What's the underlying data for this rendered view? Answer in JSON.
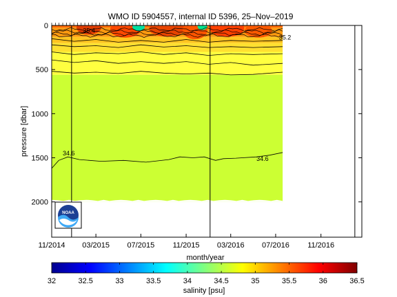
{
  "chart_data": {
    "type": "heatmap",
    "title": "WMO ID 5904557, internal ID 5396, 25–Nov–2019",
    "xlabel": "month/year",
    "ylabel": "pressure [dbar]",
    "x_axis": {
      "type": "date",
      "range": [
        "2014-11-01",
        "2017-02-20"
      ],
      "ticks": [
        {
          "date": "2014-11-01",
          "label": "11/2014"
        },
        {
          "date": "2015-03-01",
          "label": "03/2015"
        },
        {
          "date": "2015-07-01",
          "label": "07/2015"
        },
        {
          "date": "2015-11-01",
          "label": "11/2015"
        },
        {
          "date": "2016-03-01",
          "label": "03/2016"
        },
        {
          "date": "2016-07-01",
          "label": "07/2016"
        },
        {
          "date": "2016-11-01",
          "label": "11/2016"
        }
      ]
    },
    "y_axis": {
      "range": [
        0,
        2400
      ],
      "inverted": true,
      "ticks": [
        0,
        500,
        1000,
        1500,
        2000
      ]
    },
    "vertical_markers": [
      "2014-12-25",
      "2016-01-05",
      "2017-02-01"
    ],
    "data_extent": {
      "start": "2014-11-01",
      "end": "2016-07-20",
      "max_pressure": 2000
    },
    "salinity_bands": [
      {
        "top": 0,
        "bottom": 25,
        "salinity": 35.7,
        "color": "#ff6a00"
      },
      {
        "top": 25,
        "bottom": 130,
        "salinity": 35.3,
        "color": "#ff9a10"
      },
      {
        "top": 130,
        "bottom": 200,
        "salinity": 35.05,
        "color": "#ffc420"
      },
      {
        "top": 200,
        "bottom": 300,
        "salinity": 34.95,
        "color": "#ffe030"
      },
      {
        "top": 300,
        "bottom": 560,
        "salinity": 34.85,
        "color": "#ffff40"
      },
      {
        "top": 560,
        "bottom": 2000,
        "salinity": 34.65,
        "color": "#ccff33"
      }
    ],
    "contours": [
      {
        "level": "34.6",
        "label_date": "2016-05-10",
        "label_pressure": 1510,
        "points": [
          [
            "2014-11-01",
            1620
          ],
          [
            "2014-11-20",
            1530
          ],
          [
            "2014-12-15",
            1490
          ],
          [
            "2015-01-15",
            1520
          ],
          [
            "2015-03-15",
            1540
          ],
          [
            "2015-05-15",
            1530
          ],
          [
            "2015-07-15",
            1550
          ],
          [
            "2015-09-15",
            1520
          ],
          [
            "2015-10-15",
            1490
          ],
          [
            "2015-11-20",
            1500
          ],
          [
            "2015-12-20",
            1490
          ],
          [
            "2016-01-20",
            1530
          ],
          [
            "2016-02-10",
            1510
          ],
          [
            "2016-03-15",
            1505
          ],
          [
            "2016-05-10",
            1490
          ],
          [
            "2016-06-15",
            1470
          ],
          [
            "2016-07-20",
            1440
          ]
        ]
      },
      {
        "level": "",
        "points": [
          [
            "2014-11-01",
            520
          ],
          [
            "2015-01-01",
            540
          ],
          [
            "2015-03-01",
            530
          ],
          [
            "2015-05-01",
            545
          ],
          [
            "2015-07-01",
            520
          ],
          [
            "2015-09-01",
            540
          ],
          [
            "2015-11-01",
            550
          ],
          [
            "2016-01-01",
            540
          ],
          [
            "2016-03-01",
            560
          ],
          [
            "2016-05-01",
            555
          ],
          [
            "2016-07-20",
            530
          ]
        ]
      },
      {
        "level": "",
        "points": [
          [
            "2014-11-01",
            390
          ],
          [
            "2015-01-01",
            420
          ],
          [
            "2015-03-01",
            400
          ],
          [
            "2015-05-01",
            430
          ],
          [
            "2015-07-01",
            410
          ],
          [
            "2015-09-01",
            430
          ],
          [
            "2015-11-01",
            410
          ],
          [
            "2016-01-01",
            440
          ],
          [
            "2016-03-01",
            420
          ],
          [
            "2016-05-01",
            450
          ],
          [
            "2016-07-20",
            430
          ]
        ]
      },
      {
        "level": "",
        "points": [
          [
            "2014-11-01",
            300
          ],
          [
            "2015-01-01",
            330
          ],
          [
            "2015-03-01",
            310
          ],
          [
            "2015-05-01",
            320
          ],
          [
            "2015-07-01",
            300
          ],
          [
            "2015-09-01",
            330
          ],
          [
            "2015-11-01",
            310
          ],
          [
            "2016-01-01",
            340
          ],
          [
            "2016-03-01",
            320
          ],
          [
            "2016-05-01",
            330
          ],
          [
            "2016-07-20",
            320
          ]
        ]
      },
      {
        "level": "",
        "points": [
          [
            "2014-11-01",
            220
          ],
          [
            "2015-01-01",
            240
          ],
          [
            "2015-03-01",
            230
          ],
          [
            "2015-05-01",
            250
          ],
          [
            "2015-07-01",
            220
          ],
          [
            "2015-09-01",
            245
          ],
          [
            "2015-11-01",
            230
          ],
          [
            "2016-01-01",
            250
          ],
          [
            "2016-03-01",
            240
          ],
          [
            "2016-05-01",
            250
          ],
          [
            "2016-07-20",
            240
          ]
        ]
      },
      {
        "level": "",
        "points": [
          [
            "2014-11-01",
            150
          ],
          [
            "2015-01-01",
            180
          ],
          [
            "2015-03-01",
            160
          ],
          [
            "2015-05-01",
            190
          ],
          [
            "2015-07-01",
            170
          ],
          [
            "2015-09-01",
            190
          ],
          [
            "2015-11-01",
            160
          ],
          [
            "2016-01-01",
            190
          ],
          [
            "2016-03-01",
            170
          ],
          [
            "2016-05-01",
            180
          ],
          [
            "2016-07-20",
            170
          ]
        ]
      }
    ],
    "contour_labels": [
      {
        "text": "34.6",
        "date": "2014-12-01",
        "pressure": 1450
      },
      {
        "text": "35.2",
        "date": "2016-07-10",
        "pressure": 135
      },
      {
        "text": "35.4",
        "date": "2015-01-25",
        "pressure": 60
      },
      {
        "text": "34.6",
        "date": "2016-05-10",
        "pressure": 1510
      }
    ],
    "colorbar": {
      "label": "salinity [psu]",
      "min": 32,
      "max": 36.5,
      "ticks": [
        "32",
        "32.5",
        "33",
        "33.5",
        "34",
        "34.5",
        "35",
        "35.5",
        "36",
        "36.5"
      ],
      "colors": [
        "#00008f",
        "#0000ff",
        "#0080ff",
        "#00ffff",
        "#80ff80",
        "#ffff00",
        "#ff8000",
        "#ff0000",
        "#800000"
      ]
    },
    "logo_text": "NOAA"
  }
}
